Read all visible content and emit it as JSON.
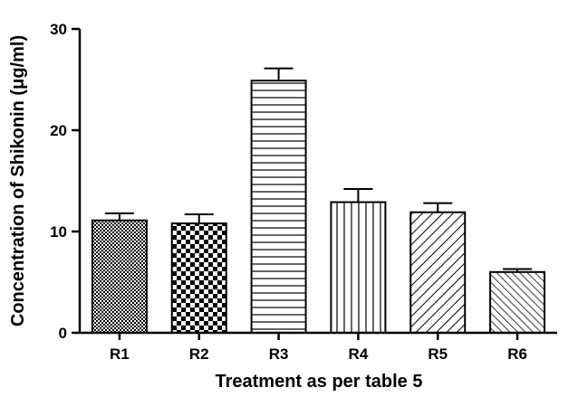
{
  "chart_data": {
    "type": "bar",
    "categories": [
      "R1",
      "R2",
      "R3",
      "R4",
      "R5",
      "R6"
    ],
    "values": [
      11.1,
      10.8,
      24.9,
      12.9,
      11.9,
      6.0
    ],
    "error_upper": [
      0.7,
      0.9,
      1.2,
      1.3,
      0.9,
      0.3
    ],
    "patterns": [
      "crosshatch-fine",
      "checkerboard",
      "horizontal-lines",
      "vertical-lines",
      "diagonal-up",
      "diagonal-down"
    ],
    "title": "",
    "xlabel": "Treatment as per table 5",
    "ylabel": "Concentration of Shikonin (μg/ml)",
    "ylim": [
      0,
      30
    ],
    "yticks": [
      0,
      10,
      20,
      30
    ],
    "grid": false,
    "legend": "none"
  }
}
